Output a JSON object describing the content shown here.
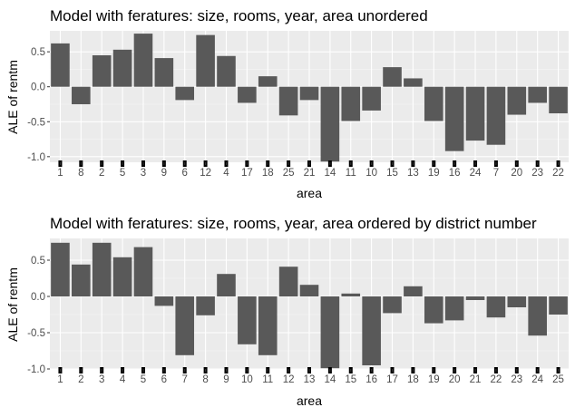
{
  "chart_data": [
    {
      "type": "bar",
      "title": "Model with feratures: size, rooms, year, area unordered",
      "xlabel": "area",
      "ylabel": "ALE of rentm",
      "ylim": [
        -1.08,
        0.8
      ],
      "yticks": [
        -1.0,
        -0.5,
        0.0,
        0.5
      ],
      "ytick_labels": [
        "-1.0",
        "-0.5",
        "0.0",
        "0.5"
      ],
      "grid": true,
      "rug": true,
      "bar_color": "#595959",
      "panel_background": "#ebebeb",
      "categories": [
        "1",
        "8",
        "2",
        "5",
        "3",
        "9",
        "6",
        "12",
        "4",
        "17",
        "18",
        "25",
        "21",
        "14",
        "11",
        "10",
        "15",
        "13",
        "19",
        "16",
        "24",
        "7",
        "20",
        "23",
        "22"
      ],
      "values": [
        0.62,
        -0.25,
        0.45,
        0.53,
        0.76,
        0.41,
        -0.19,
        0.74,
        0.44,
        -0.23,
        0.15,
        -0.41,
        -0.19,
        -1.07,
        -0.49,
        -0.34,
        0.28,
        0.12,
        -0.49,
        -0.92,
        -0.77,
        -0.83,
        -0.4,
        -0.23,
        -0.38
      ]
    },
    {
      "type": "bar",
      "title": "Model with feratures: size, rooms, year, area ordered by district number",
      "xlabel": "area",
      "ylabel": "ALE of rentm",
      "ylim": [
        -1.0,
        0.8
      ],
      "yticks": [
        -1.0,
        -0.5,
        0.0,
        0.5
      ],
      "ytick_labels": [
        "-1.0",
        "-0.5",
        "0.0",
        "0.5"
      ],
      "grid": true,
      "rug": true,
      "bar_color": "#595959",
      "panel_background": "#ebebeb",
      "categories": [
        "1",
        "2",
        "3",
        "4",
        "5",
        "6",
        "7",
        "8",
        "9",
        "10",
        "11",
        "12",
        "13",
        "14",
        "15",
        "16",
        "17",
        "18",
        "19",
        "20",
        "21",
        "22",
        "23",
        "24",
        "25"
      ],
      "values": [
        0.74,
        0.44,
        0.74,
        0.54,
        0.68,
        -0.13,
        -0.81,
        -0.26,
        0.31,
        -0.66,
        -0.81,
        0.41,
        0.16,
        -0.99,
        0.04,
        -0.95,
        -0.23,
        0.14,
        -0.37,
        -0.33,
        -0.05,
        -0.29,
        -0.15,
        -0.54,
        -0.25
      ]
    }
  ]
}
